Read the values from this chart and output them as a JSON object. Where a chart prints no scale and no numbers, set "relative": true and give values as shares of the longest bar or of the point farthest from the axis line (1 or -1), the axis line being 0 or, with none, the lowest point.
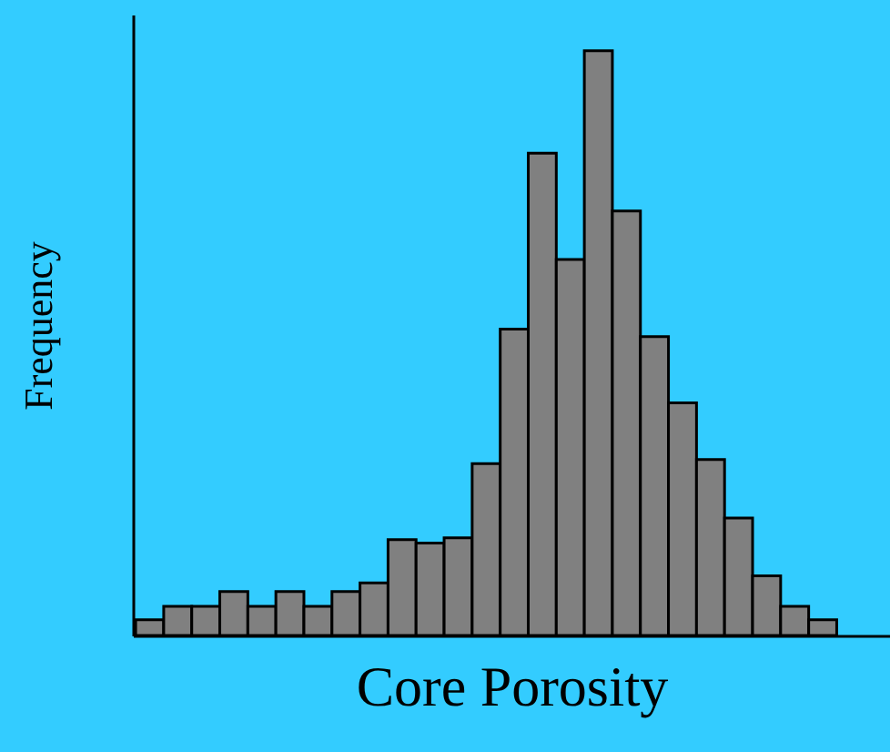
{
  "chart_data": {
    "type": "bar",
    "xlabel": "Core Porosity",
    "ylabel": "Frequency",
    "relative": true,
    "color": "#808080",
    "categories": [
      null,
      null,
      null,
      null,
      null,
      null,
      null,
      null,
      null,
      null,
      null,
      null,
      null,
      null,
      null,
      null,
      null,
      null,
      null,
      null,
      null,
      null,
      null,
      null,
      null
    ],
    "values": [
      0.027,
      0.05,
      0.05,
      0.075,
      0.05,
      0.075,
      0.05,
      0.075,
      0.09,
      0.164,
      0.158,
      0.167,
      0.294,
      0.524,
      0.825,
      0.643,
      1,
      0.726,
      0.511,
      0.398,
      0.301,
      0.201,
      0.102,
      0.05,
      0.027
    ]
  }
}
